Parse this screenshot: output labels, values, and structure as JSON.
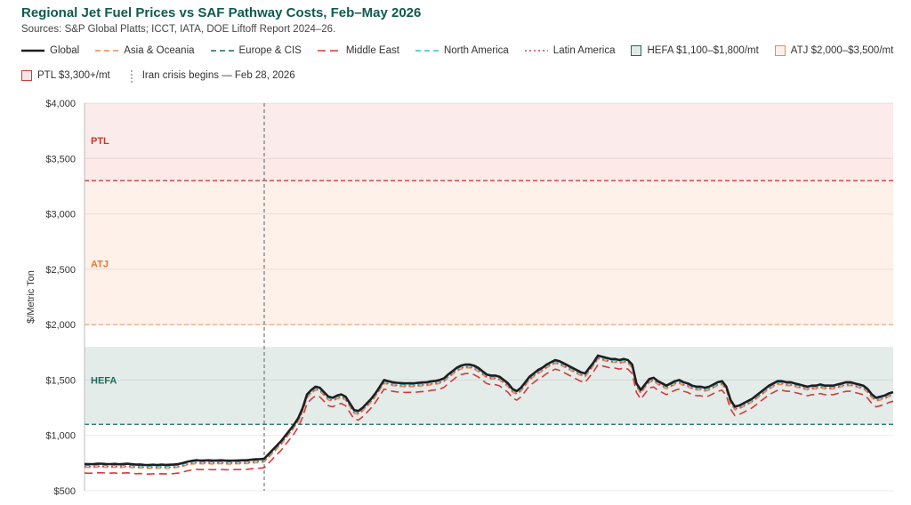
{
  "chart_data": {
    "type": "line",
    "title": "Regional Jet Fuel Prices vs SAF Pathway Costs, Feb–May 2026",
    "subtitle": "Sources: S&P Global Platts; ICCT, IATA, DOE Liftoff Report 2024–26.",
    "ylabel": "$/Metric Ton",
    "xlabel": "",
    "ylim": [
      500,
      4000
    ],
    "yticks": [
      500,
      1000,
      1500,
      2000,
      2500,
      3000,
      3500,
      4000
    ],
    "ytick_labels": [
      "$500",
      "$1,000",
      "$1,500",
      "$2,000",
      "$2,500",
      "$3,000",
      "$3,500",
      "$4,000"
    ],
    "grid": true,
    "legend": [
      {
        "label": "Global",
        "kind": "line",
        "color": "#1f1f1f",
        "dash": "solid"
      },
      {
        "label": "Asia & Oceania",
        "kind": "line",
        "color": "#f08a4b",
        "dash": "dashed"
      },
      {
        "label": "Europe & CIS",
        "kind": "line",
        "color": "#1a6b5c",
        "dash": "dashed"
      },
      {
        "label": "Middle East",
        "kind": "line",
        "color": "#d43a3a",
        "dash": "longdash"
      },
      {
        "label": "North America",
        "kind": "line",
        "color": "#3ac0c0",
        "dash": "dashed"
      },
      {
        "label": "Latin America",
        "kind": "line",
        "color": "#d0406a",
        "dash": "dotted"
      },
      {
        "label": "HEFA $1,100–$1,800/mt",
        "kind": "box",
        "color": "#1a6b5c"
      },
      {
        "label": "ATJ $2,000–$3,500/mt",
        "kind": "box",
        "color": "#f08a4b"
      },
      {
        "label": "PTL $3,300+/mt",
        "kind": "box",
        "color": "#d43a3a"
      },
      {
        "label": "Iran crisis begins — Feb 28, 2026",
        "kind": "vline",
        "color": "#777777"
      }
    ],
    "bands": [
      {
        "name": "HEFA",
        "label": "HEFA",
        "y0": 1100,
        "y1": 1800,
        "fill": "#dfe9e6",
        "label_color": "#1a6b5c"
      },
      {
        "name": "ATJ",
        "label": "ATJ",
        "y0": 2000,
        "y1": 3500,
        "fill": "#fdeee6",
        "label_color": "#e8772e"
      },
      {
        "name": "PTL",
        "label": "PTL",
        "y0": 3300,
        "y1": 4000,
        "fill": "#fbe7e7",
        "label_color": "#c0392b"
      }
    ],
    "threshold_lines": [
      {
        "value": 1100,
        "color": "#1a6b5c"
      },
      {
        "value": 2000,
        "color": "#e8a77e"
      },
      {
        "value": 3300,
        "color": "#d43a3a"
      }
    ],
    "event_index": 42,
    "series": [
      {
        "name": "Global",
        "color": "#1f1f1f",
        "values": [
          742,
          740,
          741,
          744,
          745,
          742,
          741,
          743,
          739,
          742,
          744,
          740,
          736,
          738,
          734,
          733,
          735,
          733,
          736,
          734,
          735,
          738,
          742,
          751,
          762,
          770,
          776,
          773,
          774,
          775,
          772,
          774,
          775,
          772,
          771,
          773,
          774,
          775,
          776,
          780,
          784,
          786,
          790,
          830,
          870,
          910,
          950,
          1000,
          1050,
          1100,
          1160,
          1250,
          1370,
          1410,
          1440,
          1430,
          1390,
          1350,
          1340,
          1360,
          1370,
          1350,
          1290,
          1230,
          1220,
          1250,
          1290,
          1330,
          1380,
          1440,
          1500,
          1490,
          1480,
          1475,
          1472,
          1470,
          1471,
          1470,
          1475,
          1478,
          1480,
          1488,
          1492,
          1500,
          1515,
          1550,
          1580,
          1610,
          1630,
          1640,
          1640,
          1630,
          1610,
          1580,
          1550,
          1540,
          1540,
          1530,
          1500,
          1470,
          1420,
          1400,
          1430,
          1480,
          1530,
          1560,
          1590,
          1610,
          1640,
          1660,
          1680,
          1670,
          1650,
          1630,
          1610,
          1590,
          1570,
          1560,
          1610,
          1660,
          1720,
          1710,
          1700,
          1690,
          1690,
          1680,
          1690,
          1680,
          1640,
          1470,
          1410,
          1460,
          1510,
          1520,
          1490,
          1470,
          1450,
          1470,
          1490,
          1500,
          1480,
          1470,
          1450,
          1440,
          1440,
          1430,
          1440,
          1460,
          1480,
          1490,
          1440,
          1320,
          1260,
          1270,
          1290,
          1310,
          1330,
          1360,
          1390,
          1420,
          1450,
          1470,
          1490,
          1490,
          1480,
          1480,
          1470,
          1460,
          1450,
          1440,
          1450,
          1450,
          1460,
          1450,
          1450,
          1450,
          1460,
          1470,
          1480,
          1480,
          1470,
          1460,
          1450,
          1420,
          1370,
          1340,
          1350,
          1360,
          1380,
          1390
        ]
      }
    ],
    "offsets": [
      {
        "name": "Europe & CIS",
        "offset": 0
      },
      {
        "name": "North America",
        "offset": -12
      },
      {
        "name": "Latin America",
        "offset": -22
      },
      {
        "name": "Asia & Oceania",
        "offset": -30
      },
      {
        "name": "Middle East",
        "offset": -82
      }
    ]
  }
}
